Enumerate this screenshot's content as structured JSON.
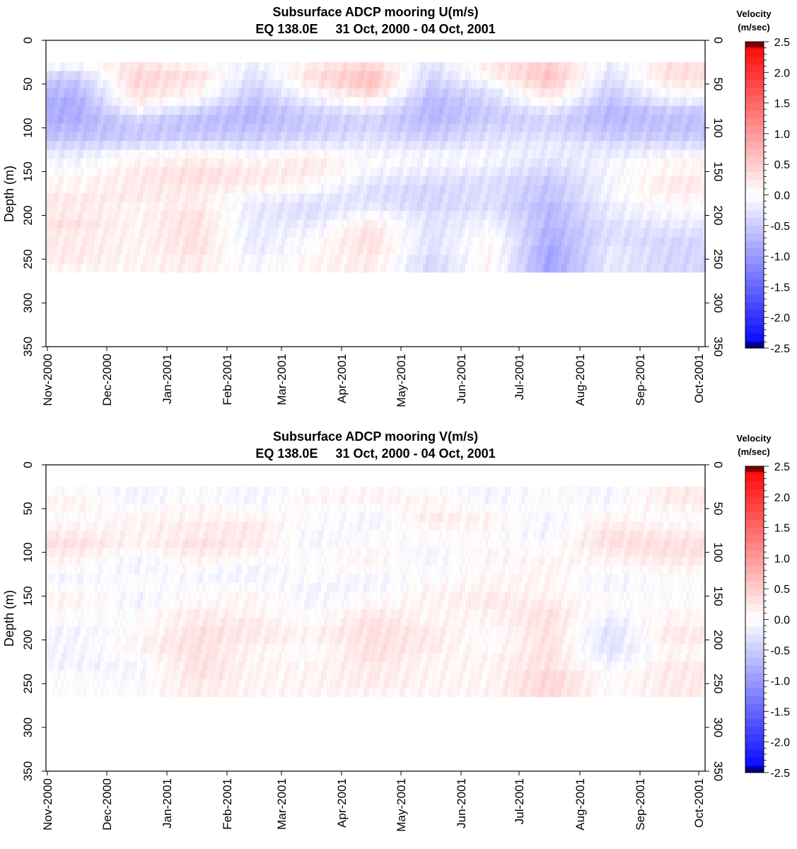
{
  "chart_data": [
    {
      "type": "heatmap",
      "title": "Subsurface ADCP mooring U(m/s)",
      "subtitle": "EQ 138.0E     31 Oct, 2000 - 04 Oct, 2001",
      "ylabel": "Depth (m)",
      "ylim": [
        0,
        350
      ],
      "y_inverted": true,
      "y_ticks": [
        "0",
        "50",
        "100",
        "150",
        "200",
        "250",
        "300",
        "350"
      ],
      "x_ticks": [
        "Nov-2000",
        "Dec-2000",
        "Jan-2001",
        "Feb-2001",
        "Mar-2001",
        "Apr-2001",
        "May-2001",
        "Jun-2001",
        "Jul-2001",
        "Aug-2001",
        "Sep-2001",
        "Oct-2001"
      ],
      "colorbar": {
        "title": "Velocity",
        "units": "(m/sec)",
        "range": [
          -2.5,
          2.5
        ],
        "tick_labels": [
          "2.5",
          "2.0",
          "1.5",
          "1.0",
          "0.5",
          "0.0",
          "-0.5",
          "-1.0",
          "-1.5",
          "-2.0",
          "-2.5"
        ],
        "colors": {
          "negative": "#0000ff",
          "zero": "#ffffff",
          "positive": "#ff0000",
          "top_extreme": "#800000",
          "bottom_extreme": "#000080"
        }
      },
      "data_depth_range": [
        25,
        265
      ],
      "depth_bins": [
        30,
        40,
        50,
        60,
        70,
        80,
        90,
        100,
        110,
        120,
        130,
        140,
        150,
        160,
        170,
        180,
        190,
        200,
        210,
        220,
        230,
        240,
        250,
        260
      ],
      "month_centers": [
        "Nov-2000",
        "Dec-2000",
        "Jan-2001",
        "Feb-2001",
        "Mar-2001",
        "Apr-2001",
        "May-2001",
        "Jun-2001",
        "Jul-2001",
        "Aug-2001",
        "Sep-2001"
      ],
      "values": [
        [
          -0.1,
          0.3,
          0.1,
          -0.2,
          0.2,
          0.4,
          -0.3,
          0.2,
          0.5,
          -0.2,
          0.3
        ],
        [
          -0.4,
          0.4,
          0.3,
          -0.3,
          0.3,
          0.6,
          -0.4,
          0.1,
          0.6,
          -0.3,
          0.3
        ],
        [
          -0.6,
          0.4,
          0.2,
          -0.4,
          0.2,
          0.6,
          -0.5,
          -0.1,
          0.5,
          -0.4,
          0.2
        ],
        [
          -0.7,
          0.3,
          0.1,
          -0.5,
          0.0,
          0.4,
          -0.6,
          -0.3,
          0.3,
          -0.5,
          0.0
        ],
        [
          -0.8,
          0.2,
          -0.1,
          -0.6,
          -0.2,
          0.1,
          -0.7,
          -0.4,
          0.1,
          -0.6,
          -0.2
        ],
        [
          -0.8,
          -0.1,
          -0.4,
          -0.7,
          -0.4,
          -0.2,
          -0.7,
          -0.5,
          -0.2,
          -0.7,
          -0.5
        ],
        [
          -0.8,
          -0.4,
          -0.6,
          -0.7,
          -0.5,
          -0.4,
          -0.7,
          -0.5,
          -0.4,
          -0.7,
          -0.6
        ],
        [
          -0.7,
          -0.5,
          -0.6,
          -0.6,
          -0.5,
          -0.4,
          -0.6,
          -0.4,
          -0.4,
          -0.6,
          -0.6
        ],
        [
          -0.6,
          -0.5,
          -0.5,
          -0.5,
          -0.4,
          -0.3,
          -0.5,
          -0.3,
          -0.3,
          -0.5,
          -0.5
        ],
        [
          -0.4,
          -0.3,
          -0.2,
          -0.3,
          -0.2,
          -0.2,
          -0.3,
          -0.2,
          -0.2,
          -0.3,
          -0.3
        ],
        [
          -0.2,
          0.0,
          0.1,
          -0.1,
          0.1,
          -0.1,
          -0.1,
          -0.1,
          -0.2,
          -0.2,
          -0.1
        ],
        [
          -0.1,
          0.1,
          0.2,
          0.1,
          0.2,
          0.0,
          -0.1,
          -0.1,
          -0.3,
          -0.1,
          0.1
        ],
        [
          0.0,
          0.2,
          0.3,
          0.2,
          0.2,
          -0.1,
          -0.2,
          -0.2,
          -0.4,
          -0.1,
          0.1
        ],
        [
          0.1,
          0.2,
          0.3,
          0.2,
          0.1,
          -0.2,
          -0.3,
          -0.3,
          -0.5,
          -0.1,
          0.2
        ],
        [
          0.1,
          0.2,
          0.2,
          0.1,
          0.0,
          -0.3,
          -0.4,
          -0.3,
          -0.6,
          -0.1,
          0.2
        ],
        [
          0.2,
          0.2,
          0.2,
          -0.1,
          -0.2,
          -0.3,
          -0.4,
          -0.3,
          -0.6,
          -0.1,
          0.1
        ],
        [
          0.2,
          0.1,
          0.2,
          -0.2,
          -0.3,
          -0.2,
          -0.4,
          -0.3,
          -0.7,
          -0.2,
          0.0
        ],
        [
          0.2,
          0.1,
          0.3,
          -0.2,
          -0.3,
          0.0,
          -0.3,
          -0.2,
          -0.7,
          -0.2,
          -0.1
        ],
        [
          0.3,
          0.1,
          0.3,
          -0.2,
          -0.2,
          0.2,
          -0.3,
          -0.1,
          -0.7,
          -0.3,
          -0.2
        ],
        [
          0.2,
          0.1,
          0.3,
          -0.2,
          -0.1,
          0.3,
          -0.3,
          0.0,
          -0.8,
          -0.3,
          -0.3
        ],
        [
          0.2,
          0.1,
          0.3,
          -0.2,
          0.0,
          0.3,
          -0.3,
          0.1,
          -0.8,
          -0.3,
          -0.4
        ],
        [
          0.2,
          0.1,
          0.3,
          -0.2,
          0.0,
          0.3,
          -0.3,
          0.1,
          -0.9,
          -0.2,
          -0.4
        ],
        [
          0.2,
          0.1,
          0.2,
          -0.1,
          0.1,
          0.2,
          -0.4,
          0.1,
          -0.9,
          -0.2,
          -0.4
        ],
        [
          0.1,
          0.1,
          0.2,
          -0.1,
          0.1,
          0.2,
          -0.4,
          0.1,
          -0.9,
          -0.2,
          -0.4
        ]
      ]
    },
    {
      "type": "heatmap",
      "title": "Subsurface ADCP mooring V(m/s)",
      "subtitle": "EQ 138.0E     31 Oct, 2000 - 04 Oct, 2001",
      "ylabel": "Depth (m)",
      "ylim": [
        0,
        350
      ],
      "y_inverted": true,
      "y_ticks": [
        "0",
        "50",
        "100",
        "150",
        "200",
        "250",
        "300",
        "350"
      ],
      "x_ticks": [
        "Nov-2000",
        "Dec-2000",
        "Jan-2001",
        "Feb-2001",
        "Mar-2001",
        "Apr-2001",
        "May-2001",
        "Jun-2001",
        "Jul-2001",
        "Aug-2001",
        "Sep-2001",
        "Oct-2001"
      ],
      "colorbar": {
        "title": "Velocity",
        "units": "(m/sec)",
        "range": [
          -2.5,
          2.5
        ],
        "tick_labels": [
          "2.5",
          "2.0",
          "1.5",
          "1.0",
          "0.5",
          "0.0",
          "-0.5",
          "-1.0",
          "-1.5",
          "-2.0",
          "-2.5"
        ],
        "colors": {
          "negative": "#0000ff",
          "zero": "#ffffff",
          "positive": "#ff0000",
          "top_extreme": "#800000",
          "bottom_extreme": "#000080"
        }
      },
      "data_depth_range": [
        25,
        265
      ],
      "depth_bins": [
        30,
        40,
        50,
        60,
        70,
        80,
        90,
        100,
        110,
        120,
        130,
        140,
        150,
        160,
        170,
        180,
        190,
        200,
        210,
        220,
        230,
        240,
        250,
        260
      ],
      "month_centers": [
        "Nov-2000",
        "Dec-2000",
        "Jan-2001",
        "Feb-2001",
        "Mar-2001",
        "Apr-2001",
        "May-2001",
        "Jun-2001",
        "Jul-2001",
        "Aug-2001",
        "Sep-2001"
      ],
      "values": [
        [
          0.0,
          -0.1,
          0.0,
          -0.1,
          0.0,
          0.1,
          0.0,
          -0.1,
          0.0,
          -0.1,
          0.2
        ],
        [
          0.1,
          -0.1,
          0.0,
          -0.1,
          0.1,
          0.1,
          0.1,
          -0.1,
          0.0,
          -0.1,
          0.2
        ],
        [
          0.1,
          0.0,
          0.1,
          0.0,
          0.0,
          0.0,
          0.1,
          0.0,
          0.0,
          0.0,
          0.1
        ],
        [
          0.0,
          0.1,
          0.1,
          0.1,
          0.0,
          -0.1,
          0.2,
          0.1,
          -0.1,
          0.1,
          0.0
        ],
        [
          0.1,
          0.1,
          0.2,
          0.2,
          0.0,
          -0.1,
          0.1,
          0.1,
          -0.1,
          0.2,
          0.1
        ],
        [
          0.2,
          0.1,
          0.2,
          0.2,
          -0.1,
          0.0,
          0.0,
          0.0,
          -0.1,
          0.3,
          0.2
        ],
        [
          0.3,
          0.1,
          0.3,
          0.2,
          -0.1,
          0.0,
          0.0,
          0.0,
          0.0,
          0.3,
          0.3
        ],
        [
          0.2,
          0.0,
          0.2,
          0.1,
          0.0,
          0.1,
          -0.1,
          0.1,
          0.0,
          0.2,
          0.3
        ],
        [
          0.1,
          -0.1,
          0.1,
          0.0,
          0.0,
          0.1,
          -0.1,
          0.1,
          0.1,
          0.1,
          0.2
        ],
        [
          0.0,
          -0.1,
          0.0,
          -0.1,
          0.0,
          0.0,
          0.0,
          0.0,
          0.1,
          0.0,
          0.1
        ],
        [
          -0.1,
          0.0,
          -0.1,
          -0.1,
          0.0,
          -0.1,
          0.0,
          0.1,
          0.1,
          -0.1,
          0.0
        ],
        [
          0.0,
          0.0,
          0.0,
          0.0,
          -0.1,
          -0.1,
          0.1,
          0.1,
          0.1,
          -0.1,
          0.0
        ],
        [
          0.1,
          -0.1,
          0.0,
          0.1,
          -0.1,
          0.0,
          0.1,
          0.2,
          0.1,
          0.0,
          0.0
        ],
        [
          0.1,
          -0.1,
          0.1,
          0.1,
          -0.1,
          0.1,
          0.1,
          0.2,
          0.2,
          0.0,
          0.0
        ],
        [
          0.0,
          0.0,
          0.2,
          0.1,
          0.0,
          0.2,
          0.1,
          0.1,
          0.3,
          -0.1,
          0.1
        ],
        [
          0.0,
          0.0,
          0.2,
          0.2,
          0.0,
          0.3,
          0.1,
          0.1,
          0.3,
          -0.2,
          0.1
        ],
        [
          -0.1,
          0.0,
          0.3,
          0.2,
          0.1,
          0.3,
          0.2,
          0.0,
          0.3,
          -0.3,
          0.2
        ],
        [
          -0.1,
          0.1,
          0.3,
          0.2,
          0.1,
          0.3,
          0.2,
          0.0,
          0.3,
          -0.3,
          0.2
        ],
        [
          -0.1,
          0.1,
          0.3,
          0.1,
          0.0,
          0.3,
          0.2,
          0.0,
          0.3,
          -0.3,
          0.1
        ],
        [
          -0.1,
          0.0,
          0.3,
          0.1,
          0.0,
          0.3,
          0.1,
          0.1,
          0.3,
          -0.2,
          0.1
        ],
        [
          -0.1,
          -0.1,
          0.3,
          0.1,
          0.1,
          0.2,
          0.1,
          0.1,
          0.3,
          -0.1,
          0.2
        ],
        [
          0.0,
          -0.1,
          0.3,
          0.1,
          0.1,
          0.2,
          0.1,
          0.1,
          0.4,
          0.0,
          0.2
        ],
        [
          0.0,
          0.0,
          0.2,
          0.1,
          0.1,
          0.2,
          0.1,
          0.1,
          0.4,
          0.0,
          0.2
        ],
        [
          0.0,
          0.0,
          0.2,
          0.1,
          0.1,
          0.1,
          0.1,
          0.1,
          0.4,
          0.0,
          0.2
        ]
      ]
    }
  ]
}
